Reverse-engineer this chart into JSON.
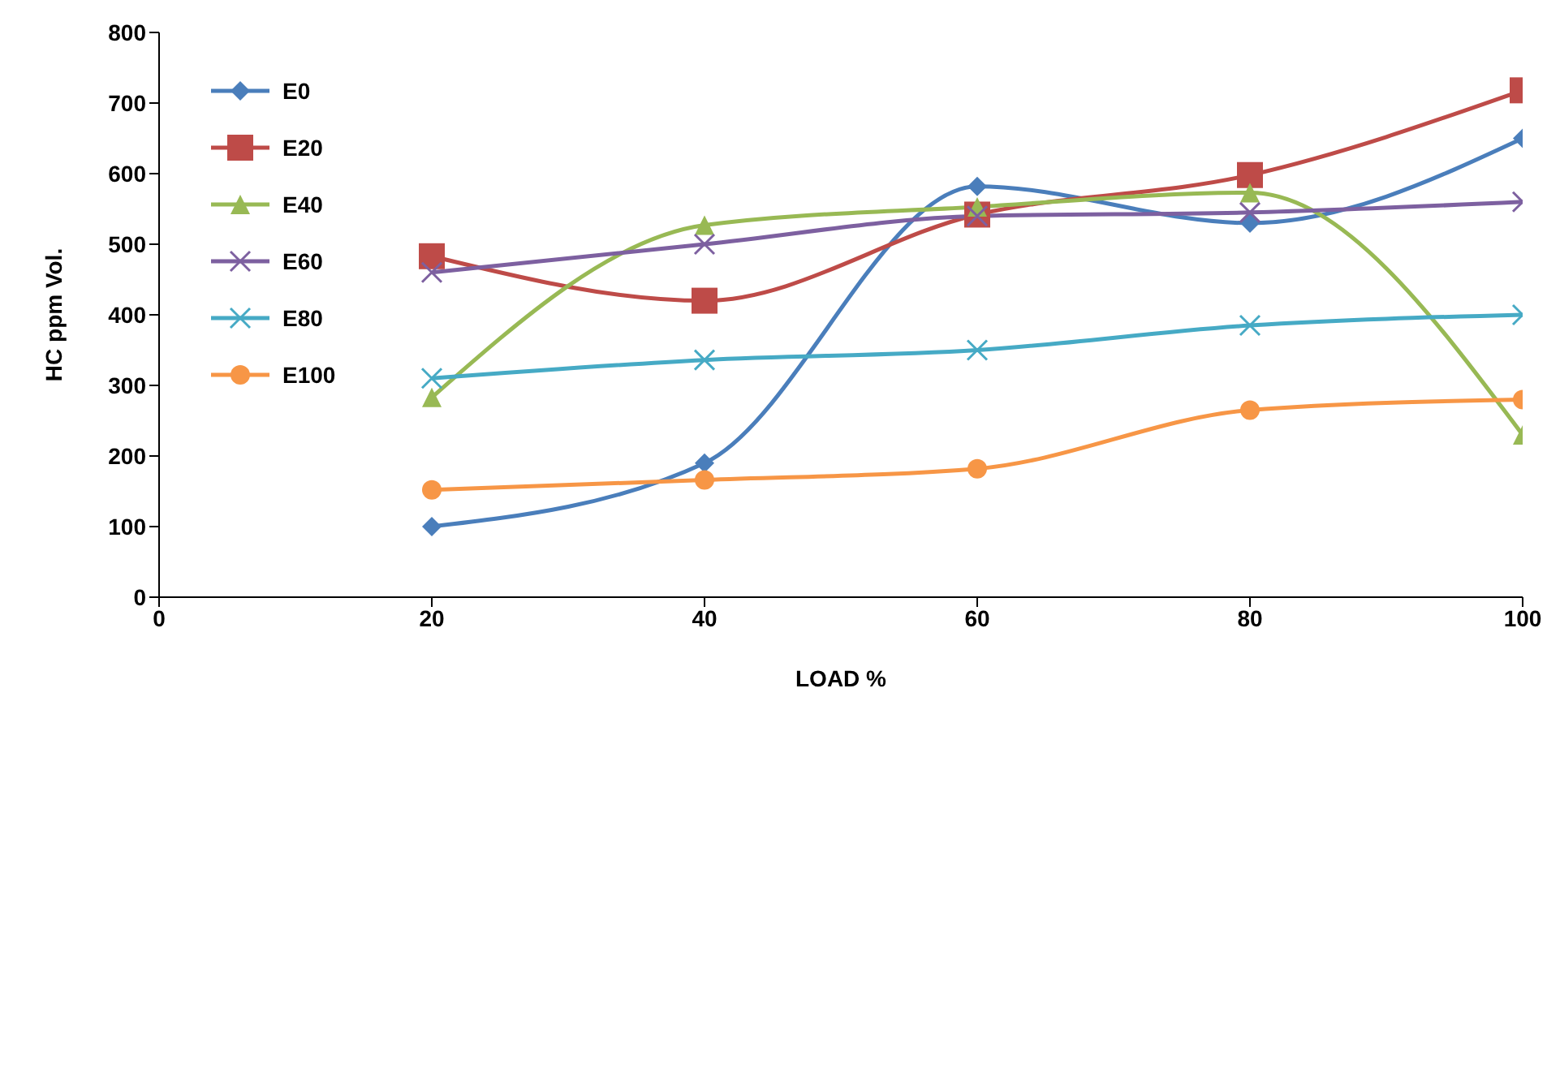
{
  "chart_data": {
    "type": "line",
    "xlabel": "LOAD %",
    "ylabel": "HC ppm Vol.",
    "x": [
      20,
      40,
      60,
      80,
      100
    ],
    "xlim": [
      0,
      100
    ],
    "xticks": [
      0,
      20,
      40,
      60,
      80,
      100
    ],
    "ylim": [
      0,
      800
    ],
    "yticks": [
      0,
      100,
      200,
      300,
      400,
      500,
      600,
      700,
      800
    ],
    "grid": false,
    "legend": "top left",
    "series": [
      {
        "name": "E0",
        "color": "#4a7ebb",
        "marker": "diamond",
        "values": [
          100,
          190,
          582,
          530,
          650
        ]
      },
      {
        "name": "E20",
        "color": "#be4b48",
        "marker": "square",
        "values": [
          483,
          420,
          542,
          598,
          718
        ]
      },
      {
        "name": "E40",
        "color": "#98b954",
        "marker": "triangle",
        "values": [
          283,
          527,
          553,
          573,
          230
        ]
      },
      {
        "name": "E60",
        "color": "#7d60a0",
        "marker": "cross",
        "values": [
          460,
          500,
          540,
          545,
          560
        ]
      },
      {
        "name": "E80",
        "color": "#46aac5",
        "marker": "cross",
        "values": [
          310,
          336,
          350,
          385,
          400
        ]
      },
      {
        "name": "E100",
        "color": "#f79646",
        "marker": "circle",
        "values": [
          152,
          166,
          182,
          265,
          280
        ]
      }
    ]
  }
}
